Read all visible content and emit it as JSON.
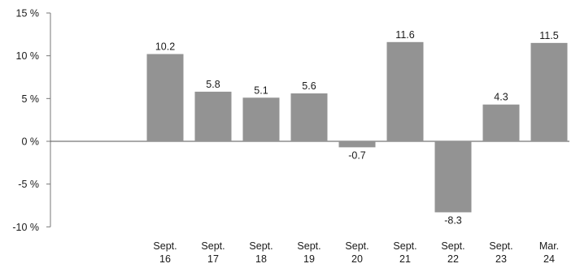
{
  "chart_data": {
    "type": "bar",
    "title": "",
    "xlabel": "",
    "ylabel": "",
    "ylim": [
      -10,
      15
    ],
    "yticks": [
      {
        "value": 15,
        "label": "15 %"
      },
      {
        "value": 10,
        "label": "10 %"
      },
      {
        "value": 5,
        "label": "5 %"
      },
      {
        "value": 0,
        "label": "0 %"
      },
      {
        "value": -5,
        "label": "-5 %"
      },
      {
        "value": -10,
        "label": "-10 %"
      }
    ],
    "categories": [
      {
        "line1": "",
        "line2": ""
      },
      {
        "line1": "",
        "line2": ""
      },
      {
        "line1": "Sept.",
        "line2": "16"
      },
      {
        "line1": "Sept.",
        "line2": "17"
      },
      {
        "line1": "Sept.",
        "line2": "18"
      },
      {
        "line1": "Sept.",
        "line2": "19"
      },
      {
        "line1": "Sept.",
        "line2": "20"
      },
      {
        "line1": "Sept.",
        "line2": "21"
      },
      {
        "line1": "Sept.",
        "line2": "22"
      },
      {
        "line1": "Sept.",
        "line2": "23"
      },
      {
        "line1": "Mar.",
        "line2": "24"
      }
    ],
    "values": [
      0,
      0,
      10.2,
      5.8,
      5.1,
      5.6,
      -0.7,
      11.6,
      -8.3,
      4.3,
      11.5
    ],
    "data_labels": [
      "",
      "",
      "10.2",
      "5.8",
      "5.1",
      "5.6",
      "-0.7",
      "11.6",
      "-8.3",
      "4.3",
      "11.5"
    ],
    "bar_color": "#939393",
    "grid": false
  }
}
